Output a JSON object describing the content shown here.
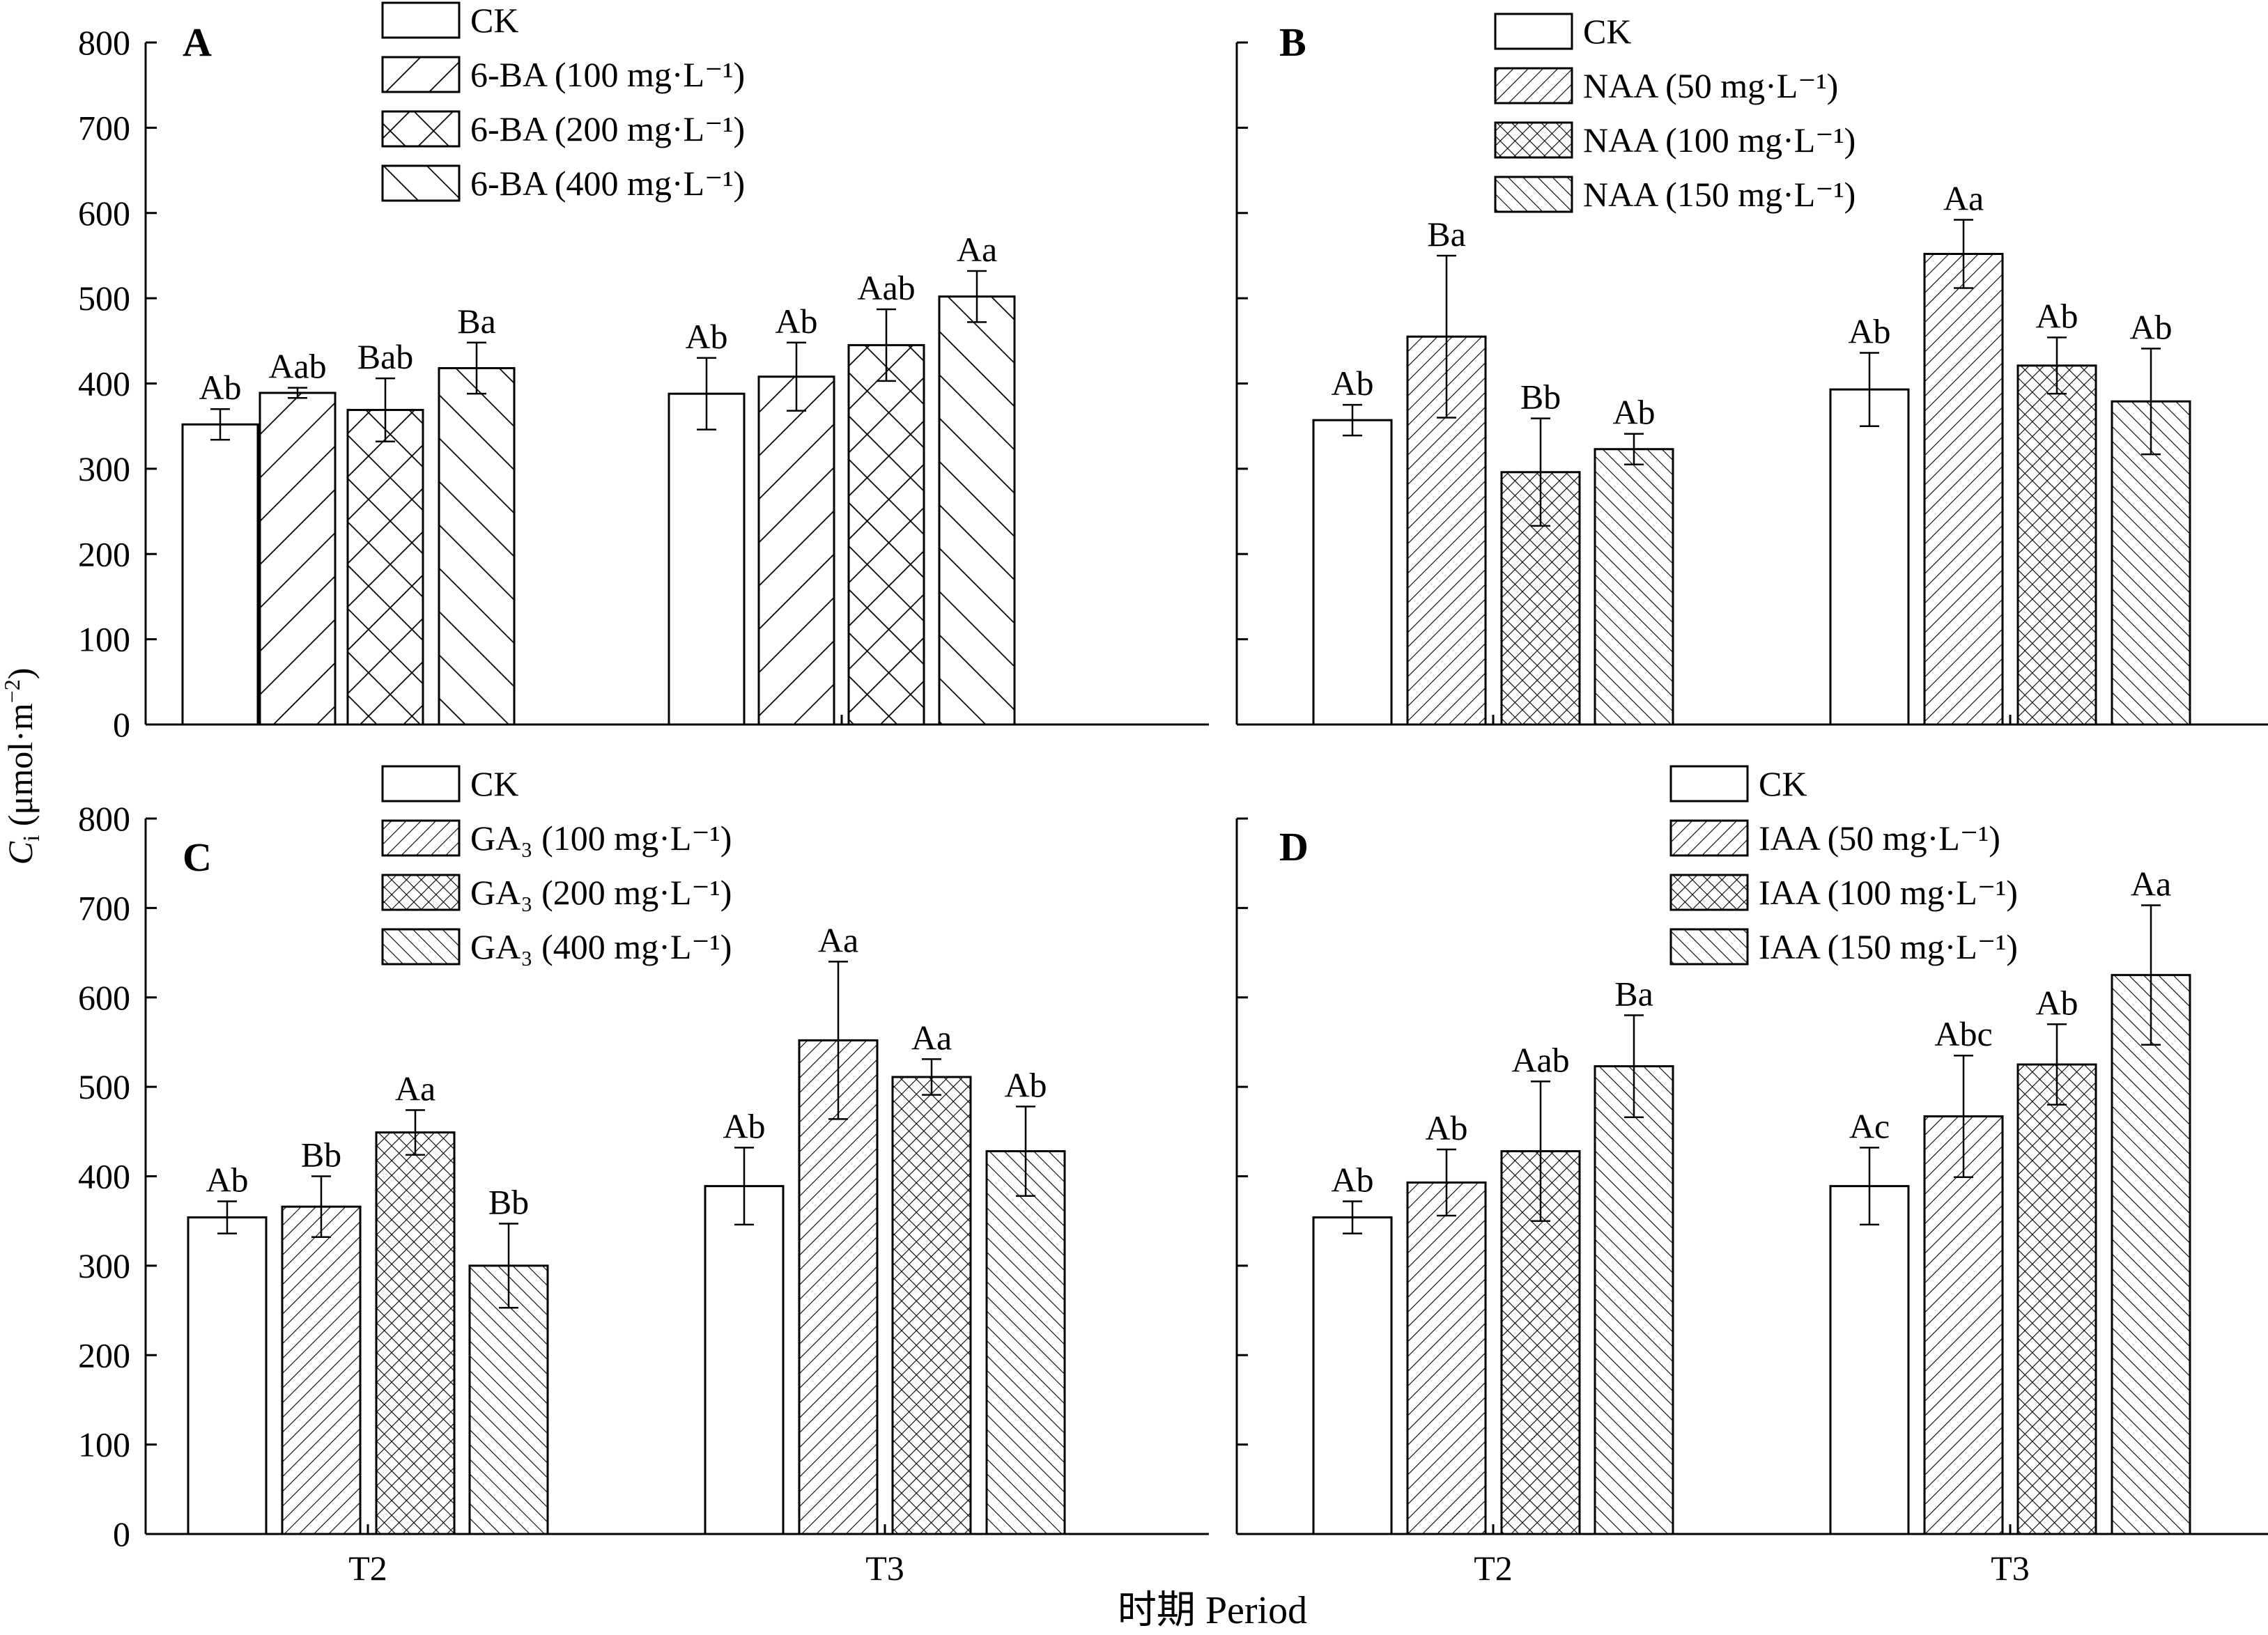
{
  "figure": {
    "ylabel_main": "C",
    "ylabel_sub": "i",
    "ylabel_unit": " (μmol·m",
    "ylabel_sup": "−2",
    "ylabel_close": ")",
    "xlabel": "时期 Period"
  },
  "colors": {
    "ink": "#000000",
    "bar_fill": "#ffffff"
  },
  "chart_data": [
    {
      "type": "bar",
      "panel": "A",
      "categories": [
        "T2",
        "T3"
      ],
      "ylim": [
        0,
        800
      ],
      "yticks": [
        0,
        100,
        200,
        300,
        400,
        500,
        600,
        700,
        800
      ],
      "show_ytick_labels": true,
      "show_xtick_labels": false,
      "grid": false,
      "legend_position": "top-center",
      "series": [
        {
          "name": "CK",
          "hatch": "none",
          "values": [
            352,
            388
          ],
          "errors": [
            18,
            42
          ],
          "labels": [
            "Ab",
            "Ab"
          ]
        },
        {
          "name": "6-BA (100 mg·L⁻¹)",
          "hatch": "fwd-wide",
          "values": [
            389,
            408
          ],
          "errors": [
            6,
            40
          ],
          "labels": [
            "Aab",
            "Ab"
          ]
        },
        {
          "name": "6-BA (200 mg·L⁻¹)",
          "hatch": "cross-wide",
          "values": [
            369,
            445
          ],
          "errors": [
            37,
            42
          ],
          "labels": [
            "Bab",
            "Aab"
          ]
        },
        {
          "name": "6-BA (400 mg·L⁻¹)",
          "hatch": "back-wide",
          "values": [
            418,
            502
          ],
          "errors": [
            30,
            30
          ],
          "labels": [
            "Ba",
            "Aa"
          ]
        }
      ]
    },
    {
      "type": "bar",
      "panel": "B",
      "categories": [
        "T2",
        "T3"
      ],
      "ylim": [
        0,
        800
      ],
      "yticks": [
        0,
        100,
        200,
        300,
        400,
        500,
        600,
        700,
        800
      ],
      "show_ytick_labels": false,
      "show_xtick_labels": false,
      "grid": false,
      "legend_position": "top-center",
      "series": [
        {
          "name": "CK",
          "hatch": "none",
          "values": [
            357,
            393
          ],
          "errors": [
            18,
            43
          ],
          "labels": [
            "Ab",
            "Ab"
          ]
        },
        {
          "name": "NAA (50 mg·L⁻¹)",
          "hatch": "fwd-dense",
          "values": [
            455,
            552
          ],
          "errors": [
            95,
            40
          ],
          "labels": [
            "Ba",
            "Aa"
          ]
        },
        {
          "name": "NAA (100 mg·L⁻¹)",
          "hatch": "cross-dense",
          "values": [
            296,
            421
          ],
          "errors": [
            63,
            33
          ],
          "labels": [
            "Bb",
            "Ab"
          ]
        },
        {
          "name": "NAA (150 mg·L⁻¹)",
          "hatch": "back-dense",
          "values": [
            323,
            379
          ],
          "errors": [
            18,
            62
          ],
          "labels": [
            "Ab",
            "Ab"
          ]
        }
      ]
    },
    {
      "type": "bar",
      "panel": "C",
      "categories": [
        "T2",
        "T3"
      ],
      "ylim": [
        0,
        800
      ],
      "yticks": [
        0,
        100,
        200,
        300,
        400,
        500,
        600,
        700,
        800
      ],
      "show_ytick_labels": true,
      "show_xtick_labels": true,
      "grid": false,
      "legend_position": "top-center",
      "series": [
        {
          "name": "CK",
          "hatch": "none",
          "values": [
            354,
            389
          ],
          "errors": [
            18,
            43
          ],
          "labels": [
            "Ab",
            "Ab"
          ]
        },
        {
          "name": "GA₃ (100 mg·L⁻¹)",
          "hatch": "fwd-dense",
          "values": [
            366,
            552
          ],
          "errors": [
            34,
            88
          ],
          "labels": [
            "Bb",
            "Aa"
          ]
        },
        {
          "name": "GA₃ (200 mg·L⁻¹)",
          "hatch": "cross-dense",
          "values": [
            449,
            511
          ],
          "errors": [
            25,
            20
          ],
          "labels": [
            "Aa",
            "Aa"
          ]
        },
        {
          "name": "GA₃ (400 mg·L⁻¹)",
          "hatch": "back-dense",
          "values": [
            300,
            428
          ],
          "errors": [
            47,
            50
          ],
          "labels": [
            "Bb",
            "Ab"
          ]
        }
      ]
    },
    {
      "type": "bar",
      "panel": "D",
      "categories": [
        "T2",
        "T3"
      ],
      "ylim": [
        0,
        800
      ],
      "yticks": [
        0,
        100,
        200,
        300,
        400,
        500,
        600,
        700,
        800
      ],
      "show_ytick_labels": false,
      "show_xtick_labels": true,
      "grid": false,
      "legend_position": "top-center",
      "series": [
        {
          "name": "CK",
          "hatch": "none",
          "values": [
            354,
            389
          ],
          "errors": [
            18,
            43
          ],
          "labels": [
            "Ab",
            "Ac"
          ]
        },
        {
          "name": "IAA (50 mg·L⁻¹)",
          "hatch": "fwd-dense",
          "values": [
            393,
            467
          ],
          "errors": [
            37,
            68
          ],
          "labels": [
            "Ab",
            "Abc"
          ]
        },
        {
          "name": "IAA (100 mg·L⁻¹)",
          "hatch": "cross-dense",
          "values": [
            428,
            525
          ],
          "errors": [
            78,
            45
          ],
          "labels": [
            "Aab",
            "Ab"
          ]
        },
        {
          "name": "IAA (150 mg·L⁻¹)",
          "hatch": "back-dense",
          "values": [
            523,
            625
          ],
          "errors": [
            57,
            78
          ],
          "labels": [
            "Ba",
            "Aa"
          ]
        }
      ]
    }
  ]
}
